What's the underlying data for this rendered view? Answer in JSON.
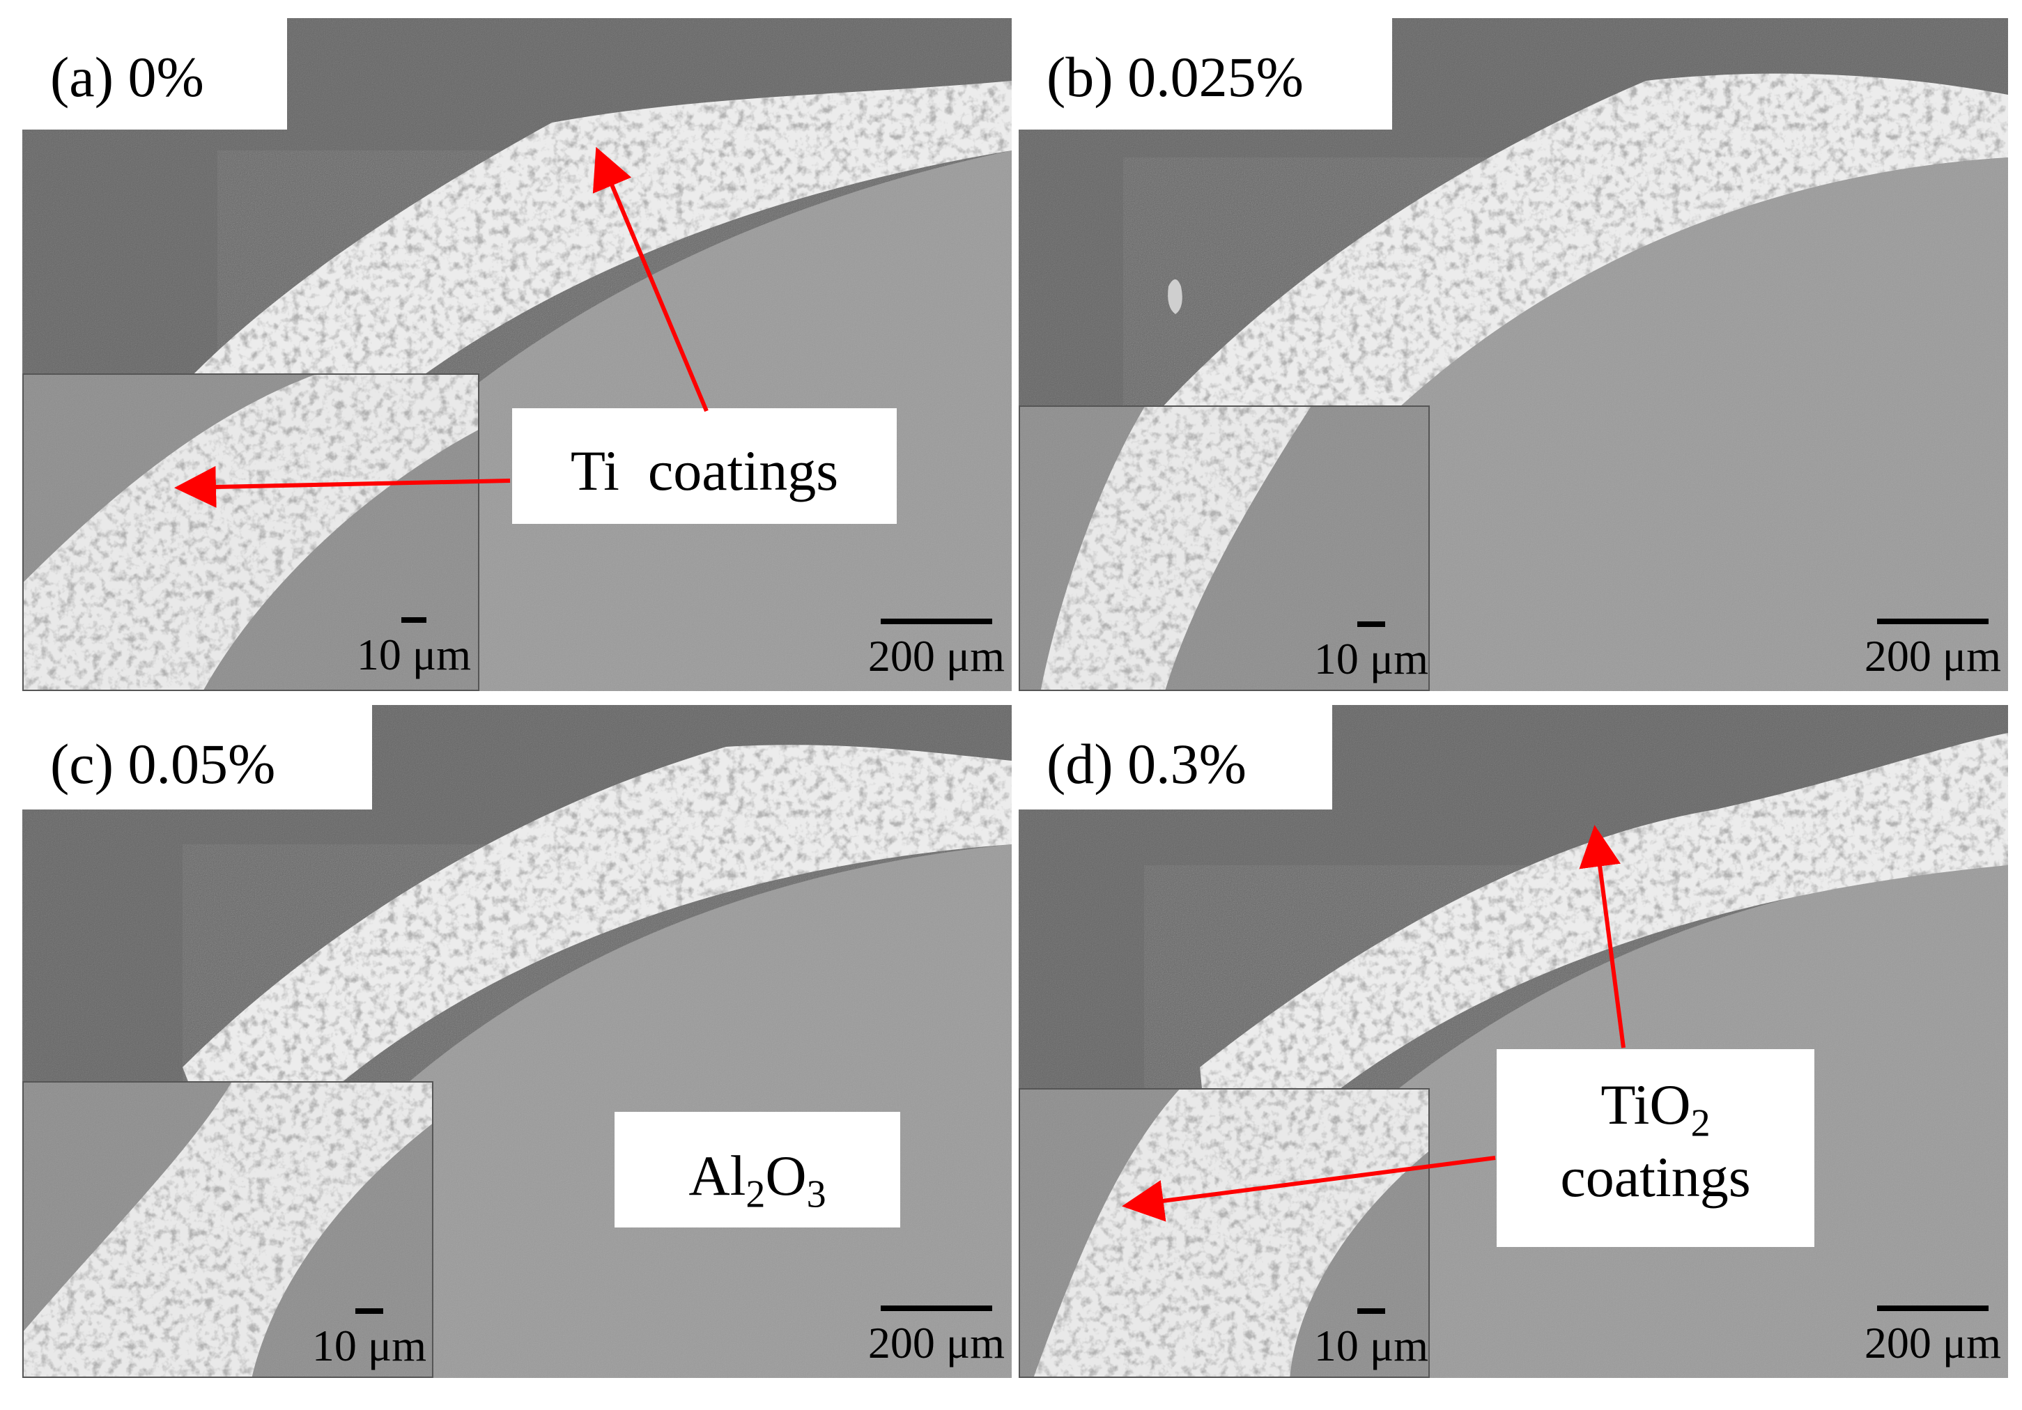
{
  "panels": [
    {
      "id": "a",
      "label": "(a) 0%",
      "inset_scale": "10 μm",
      "main_scale": "200 μm"
    },
    {
      "id": "b",
      "label": "(b) 0.025%",
      "inset_scale": "10 μm",
      "main_scale": "200 μm"
    },
    {
      "id": "c",
      "label": "(c) 0.05%",
      "inset_scale": "10 μm",
      "main_scale": "200 μm"
    },
    {
      "id": "d",
      "label": "(d) 0.3%",
      "inset_scale": "10 μm",
      "main_scale": "200 μm"
    }
  ],
  "annotations": {
    "ti_coatings": "Ti  coatings",
    "substrate": {
      "base": "Al",
      "sub1": "2",
      "mid": "O",
      "sub2": "3"
    },
    "tio2_coatings": {
      "line1_base": "TiO",
      "line1_sub": "2",
      "line2": "coatings"
    }
  },
  "colors": {
    "resin": "#656565",
    "substrate": "#9b9b9b",
    "coating": "#efefef",
    "arrow": "#ff0000"
  }
}
